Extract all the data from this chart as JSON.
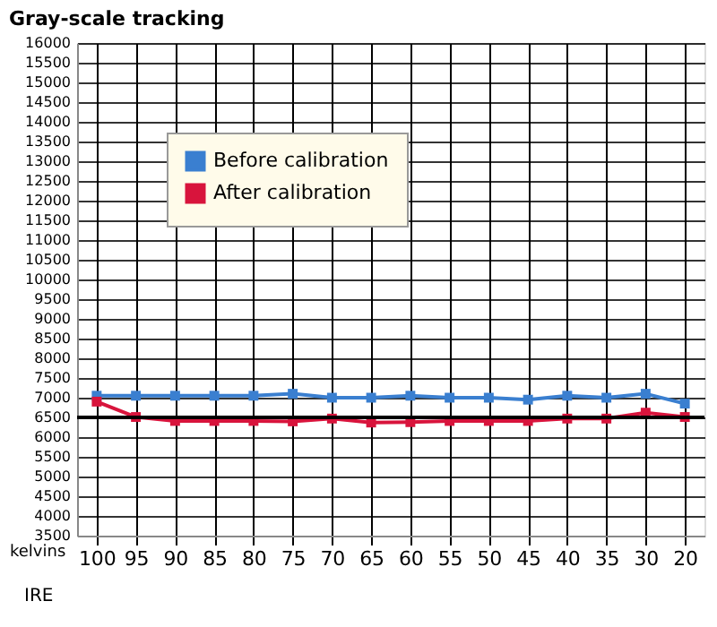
{
  "chart_data": {
    "type": "line",
    "title": "Gray-scale tracking",
    "xlabel": "IRE",
    "ylabel": "kelvins",
    "categories": [
      "100",
      "95",
      "90",
      "85",
      "80",
      "75",
      "70",
      "65",
      "60",
      "55",
      "50",
      "45",
      "40",
      "35",
      "30",
      "20"
    ],
    "series": [
      {
        "name": "Before calibration",
        "color": "#3a7fd0",
        "values": [
          7050,
          7050,
          7050,
          7050,
          7050,
          7100,
          7000,
          7000,
          7050,
          7000,
          7000,
          6950,
          7050,
          7000,
          7100,
          6850
        ]
      },
      {
        "name": "After calibration",
        "color": "#d8143c",
        "values": [
          6900,
          6510,
          6410,
          6410,
          6410,
          6400,
          6470,
          6370,
          6380,
          6410,
          6410,
          6410,
          6470,
          6470,
          6620,
          6510
        ]
      }
    ],
    "ylim": [
      3500,
      16000
    ],
    "yticks": [
      3500,
      4000,
      4500,
      5000,
      5500,
      6000,
      6500,
      7000,
      7500,
      8000,
      8500,
      9000,
      9500,
      10000,
      10500,
      11000,
      11500,
      12000,
      12500,
      13000,
      13500,
      14000,
      14500,
      15000,
      15500,
      16000
    ],
    "ref_lines": [
      {
        "axis": "y",
        "value": 6500,
        "color": "#000000"
      }
    ],
    "grid": true,
    "legend": "top left",
    "marker": "square",
    "line_style": "solid"
  }
}
